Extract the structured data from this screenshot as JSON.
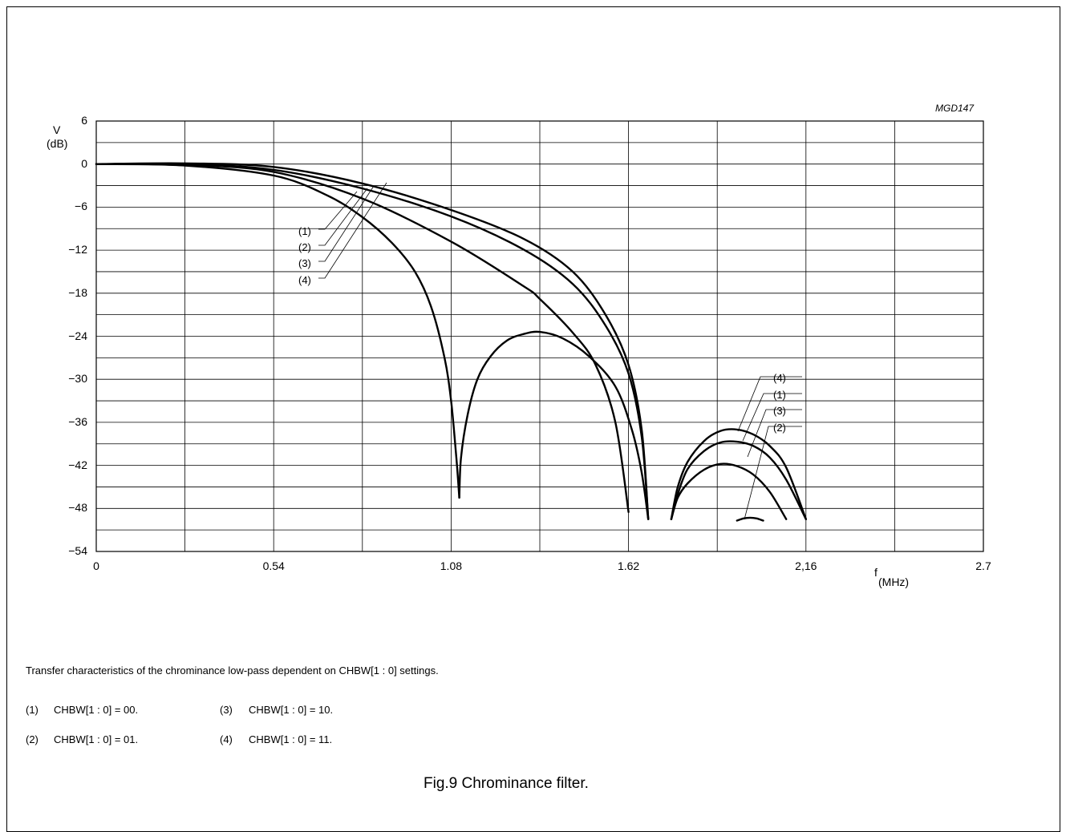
{
  "chart_data": {
    "type": "line",
    "code": "MGD147",
    "ylabel_line1": "V",
    "ylabel_line2": "(dB)",
    "xlabel_main": "f",
    "xlabel_sub": "(MHz)",
    "xlim": [
      0,
      2.7
    ],
    "ylim": [
      -54,
      6
    ],
    "x_ticks": [
      "0",
      "0.54",
      "1.08",
      "1.62",
      "2,16",
      "2.7"
    ],
    "x_tick_values": [
      0,
      0.54,
      1.08,
      1.62,
      2.16,
      2.7
    ],
    "y_ticks": [
      "6",
      "0",
      "−6",
      "−12",
      "−18",
      "−24",
      "−30",
      "−36",
      "−42",
      "−48",
      "−54"
    ],
    "y_tick_values": [
      6,
      0,
      -6,
      -12,
      -18,
      -24,
      -30,
      -36,
      -42,
      -48,
      -54
    ],
    "grid_x": [
      0,
      0.27,
      0.54,
      0.81,
      1.08,
      1.35,
      1.62,
      1.89,
      2.16,
      2.43,
      2.7
    ],
    "grid_y": [
      6,
      3,
      0,
      -3,
      -6,
      -9,
      -12,
      -15,
      -18,
      -21,
      -24,
      -27,
      -30,
      -33,
      -36,
      -39,
      -42,
      -45,
      -48,
      -51,
      -54
    ],
    "series": [
      {
        "label": "(4)",
        "segments": [
          [
            [
              0,
              0
            ],
            [
              0.27,
              -0.2
            ],
            [
              0.54,
              -1.6
            ],
            [
              0.7,
              -4.3
            ],
            [
              0.81,
              -7.4
            ],
            [
              0.9,
              -11
            ],
            [
              0.97,
              -15
            ],
            [
              1.02,
              -20
            ],
            [
              1.06,
              -27
            ],
            [
              1.08,
              -33
            ],
            [
              1.096,
              -41
            ],
            [
              1.105,
              -46.5
            ]
          ],
          [
            [
              1.105,
              -46.5
            ],
            [
              1.11,
              -41
            ],
            [
              1.13,
              -35
            ],
            [
              1.16,
              -30
            ],
            [
              1.2,
              -26.8
            ],
            [
              1.25,
              -24.6
            ],
            [
              1.3,
              -23.7
            ],
            [
              1.35,
              -23.4
            ],
            [
              1.42,
              -24.3
            ],
            [
              1.5,
              -26.8
            ],
            [
              1.58,
              -31
            ],
            [
              1.63,
              -37
            ],
            [
              1.66,
              -43
            ],
            [
              1.68,
              -49.5
            ]
          ],
          [
            [
              1.75,
              -49.5
            ],
            [
              1.77,
              -45
            ],
            [
              1.8,
              -41.5
            ],
            [
              1.85,
              -38.6
            ],
            [
              1.9,
              -37.2
            ],
            [
              1.95,
              -37.0
            ],
            [
              2.0,
              -37.7
            ],
            [
              2.05,
              -39.3
            ],
            [
              2.1,
              -42.3
            ],
            [
              2.16,
              -49.5
            ]
          ]
        ]
      },
      {
        "label": "(1)",
        "segments": [
          [
            [
              0,
              0
            ],
            [
              0.27,
              0.1
            ],
            [
              0.54,
              -0.4
            ],
            [
              0.81,
              -2.7
            ],
            [
              1.08,
              -6.4
            ],
            [
              1.3,
              -10.4
            ],
            [
              1.45,
              -15
            ],
            [
              1.55,
              -21
            ],
            [
              1.62,
              -28
            ],
            [
              1.66,
              -37
            ],
            [
              1.68,
              -49.5
            ]
          ],
          [
            [
              1.75,
              -49.5
            ],
            [
              1.77,
              -46
            ],
            [
              1.8,
              -42.5
            ],
            [
              1.85,
              -40
            ],
            [
              1.9,
              -38.8
            ],
            [
              1.95,
              -38.7
            ],
            [
              2.0,
              -39.3
            ],
            [
              2.05,
              -40.9
            ],
            [
              2.1,
              -44
            ],
            [
              2.16,
              -49.5
            ]
          ]
        ]
      },
      {
        "label": "(2)",
        "segments": [
          [
            [
              0,
              0
            ],
            [
              0.27,
              0
            ],
            [
              0.54,
              -0.8
            ],
            [
              0.81,
              -3.4
            ],
            [
              1.08,
              -7.3
            ],
            [
              1.3,
              -11.9
            ],
            [
              1.45,
              -16.7
            ],
            [
              1.55,
              -22.5
            ],
            [
              1.62,
              -29.2
            ],
            [
              1.66,
              -38
            ],
            [
              1.68,
              -49.5
            ]
          ],
          [
            [
              1.95,
              -49.7
            ],
            [
              1.97,
              -49.4
            ],
            [
              1.99,
              -49.3
            ],
            [
              2.01,
              -49.4
            ],
            [
              2.03,
              -49.7
            ]
          ]
        ]
      },
      {
        "label": "(3)",
        "segments": [
          [
            [
              0,
              0
            ],
            [
              0.27,
              -0.1
            ],
            [
              0.54,
              -1.1
            ],
            [
              0.81,
              -4.8
            ],
            [
              1.08,
              -10.8
            ],
            [
              1.3,
              -17
            ],
            [
              1.35,
              -18.8
            ],
            [
              1.45,
              -23.5
            ],
            [
              1.52,
              -28
            ],
            [
              1.58,
              -36
            ],
            [
              1.62,
              -48.5
            ]
          ],
          [
            [
              1.75,
              -49.5
            ],
            [
              1.77,
              -46.5
            ],
            [
              1.8,
              -44.5
            ],
            [
              1.85,
              -42.6
            ],
            [
              1.9,
              -41.8
            ],
            [
              1.95,
              -42.1
            ],
            [
              2.0,
              -43.3
            ],
            [
              2.05,
              -45.7
            ],
            [
              2.1,
              -49.5
            ]
          ]
        ]
      }
    ],
    "left_callouts": [
      "(1)",
      "(2)",
      "(3)",
      "(4)"
    ],
    "right_callouts": [
      "(4)",
      "(1)",
      "(3)",
      "(2)"
    ]
  },
  "caption": {
    "description": "Transfer characteristics of the chrominance low-pass dependent on CHBW[1 : 0] settings.",
    "legend": [
      {
        "num": "(1)",
        "text": "CHBW[1 : 0] = 00."
      },
      {
        "num": "(2)",
        "text": "CHBW[1 : 0] = 01."
      },
      {
        "num": "(3)",
        "text": "CHBW[1 : 0] = 10."
      },
      {
        "num": "(4)",
        "text": "CHBW[1 : 0] = 11."
      }
    ],
    "fig_title": "Fig.9  Chrominance filter."
  }
}
